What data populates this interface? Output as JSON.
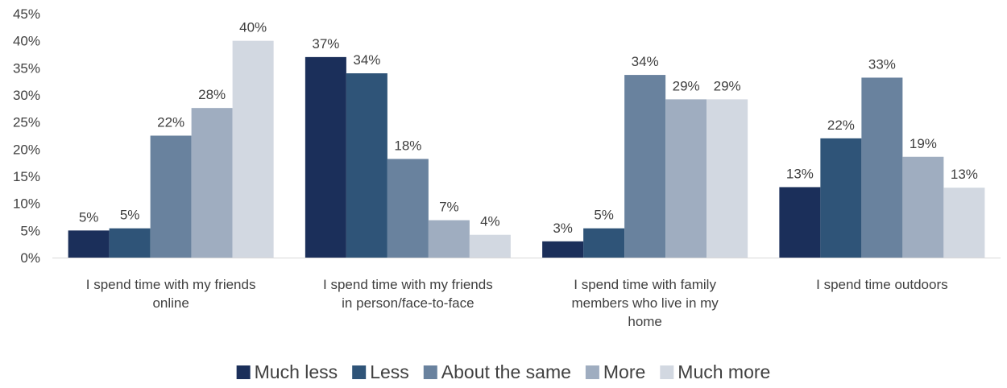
{
  "chart_data": {
    "type": "bar",
    "title": "",
    "xlabel": "",
    "ylabel": "",
    "ylim": [
      0,
      45
    ],
    "yticks": [
      "0%",
      "5%",
      "10%",
      "15%",
      "20%",
      "25%",
      "30%",
      "35%",
      "40%",
      "45%"
    ],
    "grid": false,
    "legend_position": "bottom",
    "categories": [
      [
        "I spend time with my friends",
        "online"
      ],
      [
        "I spend time with my friends",
        "in person/face-to-face"
      ],
      [
        "I spend time with family",
        "members who live in my",
        "home"
      ],
      [
        "I spend time outdoors"
      ]
    ],
    "series": [
      {
        "name": "Much less",
        "color": "#1b2f5a",
        "values": [
          5,
          37,
          3,
          13
        ],
        "labels": [
          "5%",
          "37%",
          "3%",
          "13%"
        ]
      },
      {
        "name": "Less",
        "color": "#2f5478",
        "values": [
          5.4,
          34,
          5.4,
          22
        ],
        "labels": [
          "5%",
          "34%",
          "5%",
          "22%"
        ]
      },
      {
        "name": "About the same",
        "color": "#69829e",
        "values": [
          22.5,
          18.2,
          33.7,
          33.2
        ],
        "labels": [
          "22%",
          "18%",
          "34%",
          "33%"
        ]
      },
      {
        "name": "More",
        "color": "#9fadc0",
        "values": [
          27.6,
          6.9,
          29.2,
          18.6
        ],
        "labels": [
          "28%",
          "7%",
          "29%",
          "19%"
        ]
      },
      {
        "name": "Much more",
        "color": "#d2d8e1",
        "values": [
          40,
          4.2,
          29.2,
          12.9
        ],
        "labels": [
          "40%",
          "4%",
          "29%",
          "13%"
        ]
      }
    ]
  }
}
